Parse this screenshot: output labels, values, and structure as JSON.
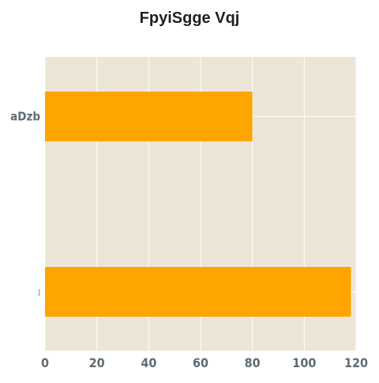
{
  "chart_data": {
    "type": "bar",
    "orientation": "horizontal",
    "title": "FpyiSgge Vqj",
    "xlabel": "",
    "ylabel": "",
    "categories": [
      "aDzb",
      "J"
    ],
    "series": [
      {
        "values": [
          80,
          118
        ]
      }
    ],
    "xlim": [
      0,
      120
    ],
    "xticks": [
      0,
      20,
      40,
      60,
      80,
      100,
      120
    ],
    "grid": true,
    "legend": "none",
    "colors": {
      "bar": "#ffa500",
      "plot_background": "#ede6d6",
      "grid": "#ffffff",
      "tick_label": "#5f6b73"
    }
  }
}
